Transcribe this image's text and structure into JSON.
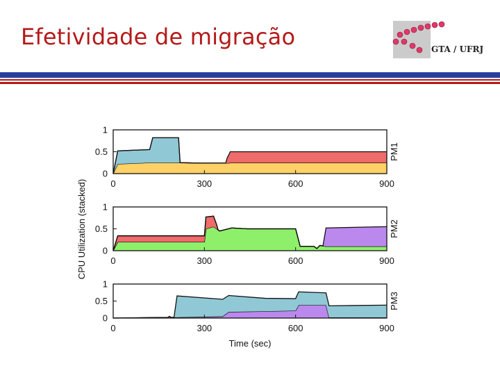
{
  "slide": {
    "title": "Efetividade de migração"
  },
  "logo": {
    "text": "GTA / UFRJ",
    "icon": "gta-dots-logo"
  },
  "colors": {
    "title": "#b51a1a",
    "rule_blue": "#2a3f9c",
    "rule_red": "#b51a1a"
  },
  "chart_data": {
    "type": "area",
    "stacked": true,
    "xlabel": "Time (sec)",
    "ylabel": "CPU Utilization (stacked)",
    "xlim": [
      0,
      900
    ],
    "ylim": [
      0,
      1
    ],
    "xticks": [
      0,
      300,
      600,
      900
    ],
    "yticks": [
      0,
      0.5,
      1
    ],
    "grid": false,
    "panels": [
      {
        "label": "PM1",
        "series": [
          {
            "color": "#ffd166",
            "x": [
              0,
              15,
              120,
              215,
              290,
              375,
              380,
              385,
              900
            ],
            "y": [
              0,
              0.22,
              0.25,
              0.25,
              0.24,
              0.24,
              0.24,
              0.25,
              0.25
            ]
          },
          {
            "color": "#90c9d5",
            "x": [
              0,
              15,
              120,
              130,
              215,
              220,
              900
            ],
            "y": [
              0,
              0.3,
              0.3,
              0.57,
              0.57,
              0,
              0
            ]
          },
          {
            "color": "#f06b6b",
            "x": [
              0,
              370,
              375,
              385,
              900
            ],
            "y": [
              0,
              0,
              0.12,
              0.25,
              0.25
            ]
          }
        ]
      },
      {
        "label": "PM2",
        "series": [
          {
            "color": "#8ef06a",
            "x": [
              0,
              15,
              300,
              305,
              330,
              350,
              390,
              440,
              500,
              600,
              615,
              660,
              670,
              680,
              700,
              900
            ],
            "y": [
              0,
              0.2,
              0.2,
              0.5,
              0.55,
              0.45,
              0.52,
              0.5,
              0.5,
              0.5,
              0.1,
              0.1,
              0.05,
              0.12,
              0.1,
              0.1
            ]
          },
          {
            "color": "#f06b6b",
            "x": [
              0,
              15,
              300,
              305,
              330,
              340,
              345,
              900
            ],
            "y": [
              0,
              0.14,
              0.14,
              0.27,
              0.24,
              0.1,
              0,
              0
            ]
          },
          {
            "color": "#bb88ee",
            "x": [
              0,
              690,
              700,
              900
            ],
            "y": [
              0,
              0,
              0.42,
              0.45
            ]
          }
        ]
      },
      {
        "label": "PM3",
        "series": [
          {
            "color": "#bb88ee",
            "x": [
              0,
              180,
              185,
              190,
              200,
              360,
              380,
              500,
              600,
              610,
              700,
              710,
              900
            ],
            "y": [
              0,
              0.02,
              0.05,
              0.02,
              0.02,
              0.05,
              0.18,
              0.2,
              0.22,
              0.38,
              0.38,
              0.02,
              0.02
            ]
          },
          {
            "color": "#90c9d5",
            "x": [
              0,
              200,
              210,
              500,
              600,
              610,
              700,
              710,
              900
            ],
            "y": [
              0,
              0,
              0.63,
              0.38,
              0.35,
              0.39,
              0.36,
              0.34,
              0.36
            ]
          }
        ]
      }
    ]
  }
}
